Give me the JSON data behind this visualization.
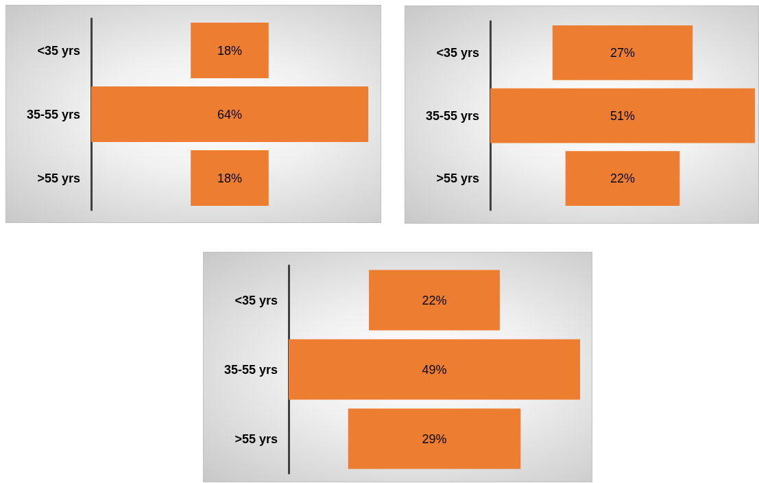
{
  "chart_data": [
    {
      "type": "other",
      "categories": [
        "<35 yrs",
        "35-55 yrs",
        ">55 yrs"
      ],
      "values": [
        18,
        64,
        18
      ],
      "value_labels": [
        "18%",
        "64%",
        "18%"
      ],
      "color": "#ed7d31"
    },
    {
      "type": "other",
      "categories": [
        "<35 yrs",
        "35-55 yrs",
        ">55 yrs"
      ],
      "values": [
        27,
        51,
        22
      ],
      "value_labels": [
        "27%",
        "51%",
        "22%"
      ],
      "color": "#ed7d31"
    },
    {
      "type": "other",
      "categories": [
        "<35 yrs",
        "35-55 yrs",
        ">55 yrs"
      ],
      "values": [
        22,
        49,
        29
      ],
      "value_labels": [
        "22%",
        "49%",
        "29%"
      ],
      "color": "#ed7d31"
    }
  ]
}
